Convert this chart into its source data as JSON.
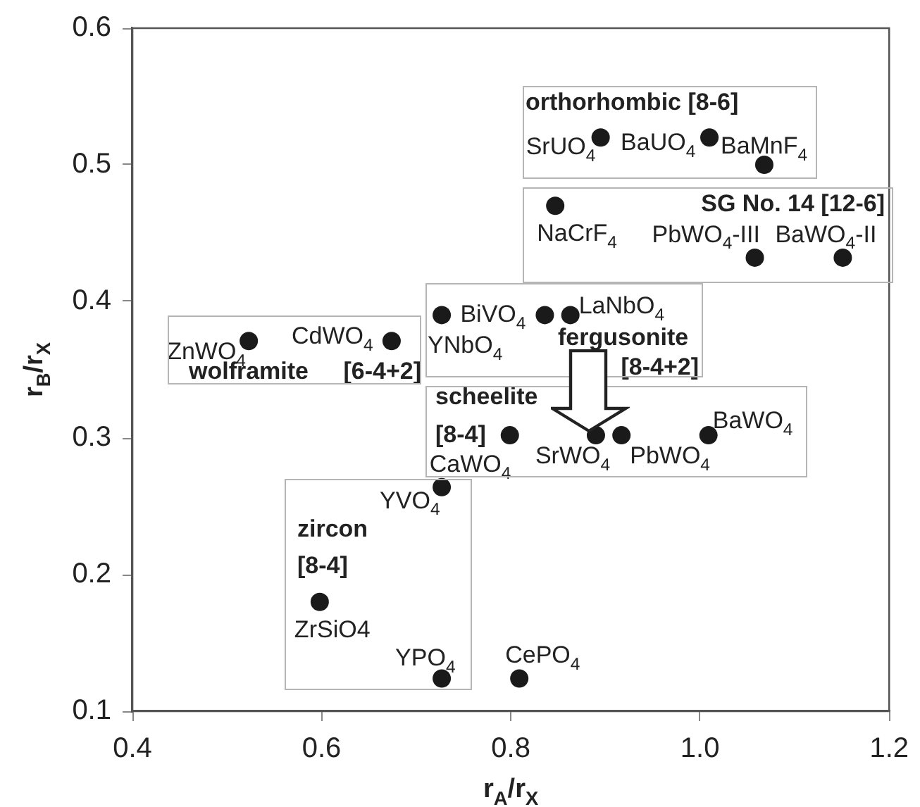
{
  "chart_data": {
    "type": "scatter",
    "xlabel": "r$_{A}$/r$_{X}$",
    "ylabel": "r$_{B}$/r$_{X}$",
    "xlim": [
      0.4,
      1.2
    ],
    "ylim": [
      0.1,
      0.6
    ],
    "xticks": [
      0.4,
      0.6,
      0.8,
      {
        "value": 1.0,
        "label": "1.0"
      },
      1.2
    ],
    "yticks": [
      0.1,
      0.2,
      0.3,
      0.4,
      0.5,
      0.6
    ],
    "marker": "circle",
    "legend": false,
    "grid": false,
    "series": [
      {
        "name": "SrUO$_{4}$",
        "color": "#1a1a1a",
        "x": [
          0.895
        ],
        "values": [
          0.52
        ]
      },
      {
        "name": "BaUO$_{4}$",
        "color": "#1a1a1a",
        "x": [
          1.01
        ],
        "values": [
          0.52
        ]
      },
      {
        "name": "BaMnF$_{4}$",
        "color": "#1a1a1a",
        "x": [
          1.068
        ],
        "values": [
          0.5
        ]
      },
      {
        "name": "NaCrF$_{4}$",
        "color": "#1a1a1a",
        "x": [
          0.847
        ],
        "values": [
          0.47
        ]
      },
      {
        "name": "PbWO$_{4}$-III",
        "color": "#1a1a1a",
        "x": [
          1.058
        ],
        "values": [
          0.432
        ]
      },
      {
        "name": "BaWO$_{4}$-II",
        "color": "#1a1a1a",
        "x": [
          1.151
        ],
        "values": [
          0.432
        ]
      },
      {
        "name": "YNbO$_{4}$",
        "color": "#1a1a1a",
        "x": [
          0.727
        ],
        "values": [
          0.39
        ]
      },
      {
        "name": "BiVO$_{4}$",
        "color": "#1a1a1a",
        "x": [
          0.836
        ],
        "values": [
          0.39
        ]
      },
      {
        "name": "LaNbO$_{4}$",
        "color": "#1a1a1a",
        "x": [
          0.863
        ],
        "values": [
          0.39
        ]
      },
      {
        "name": "ZnWO$_{4}$",
        "color": "#1a1a1a",
        "x": [
          0.523
        ],
        "values": [
          0.371
        ]
      },
      {
        "name": "CdWO$_{4}$",
        "color": "#1a1a1a",
        "x": [
          0.674
        ],
        "values": [
          0.371
        ]
      },
      {
        "name": "CaWO$_{4}$",
        "color": "#1a1a1a",
        "x": [
          0.799
        ],
        "values": [
          0.302
        ]
      },
      {
        "name": "SrWO$_{4}$",
        "color": "#1a1a1a",
        "x": [
          0.89
        ],
        "values": [
          0.302
        ]
      },
      {
        "name": "PbWO$_{4}$",
        "color": "#1a1a1a",
        "x": [
          0.917
        ],
        "values": [
          0.302
        ]
      },
      {
        "name": "BaWO$_{4}$",
        "color": "#1a1a1a",
        "x": [
          1.009
        ],
        "values": [
          0.302
        ]
      },
      {
        "name": "YVO$_{4}$",
        "color": "#1a1a1a",
        "x": [
          0.727
        ],
        "values": [
          0.264
        ]
      },
      {
        "name": "ZrSiO4",
        "color": "#1a1a1a",
        "x": [
          0.598
        ],
        "values": [
          0.18
        ]
      },
      {
        "name": "YPO$_{4}$",
        "color": "#1a1a1a",
        "x": [
          0.727
        ],
        "values": [
          0.124
        ]
      },
      {
        "name": "CePO$_{4}$",
        "color": "#1a1a1a",
        "x": [
          0.809
        ],
        "values": [
          0.124
        ]
      }
    ],
    "annotations": [
      "orthorhombic [8-6]",
      "SG No. 14 [12-6]",
      "fergusonite",
      "[8-4+2]",
      "wolframite",
      "[6-4+2]",
      "scheelite",
      "[8-4]",
      "zircon",
      "[8-4]"
    ]
  }
}
